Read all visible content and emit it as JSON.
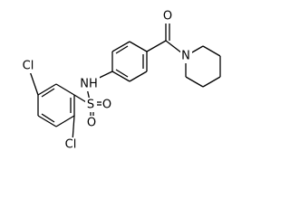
{
  "atoms": [
    "Cl",
    "Cl",
    "NH",
    "S",
    "O",
    "O",
    "O",
    "N"
  ]
}
